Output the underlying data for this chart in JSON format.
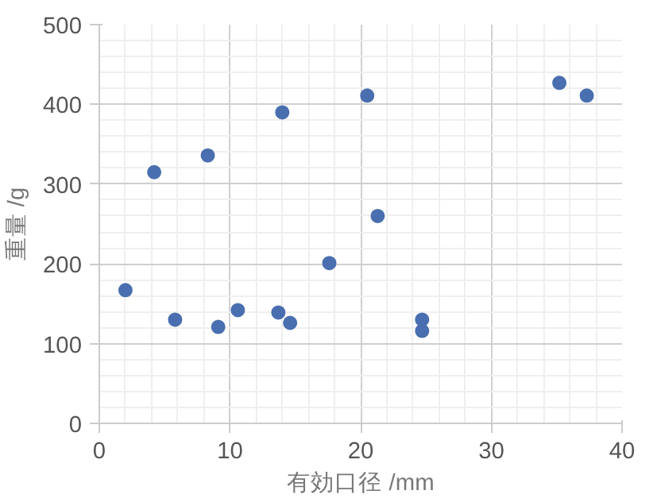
{
  "chart_data": {
    "type": "scatter",
    "xlabel": "有効口径 /mm",
    "ylabel": "重量 /g",
    "x": [
      2.0,
      4.2,
      8.3,
      14.0,
      20.5,
      35.2,
      37.3,
      5.8,
      9.1,
      10.6,
      13.7,
      14.6,
      17.6,
      21.3,
      24.7,
      24.7
    ],
    "series": [
      {
        "color": "#4a6fb0",
        "values": [
          167,
          315,
          336,
          390,
          411,
          427,
          411,
          130,
          121,
          142,
          139,
          126,
          201,
          260,
          130,
          116
        ]
      }
    ],
    "xlim": [
      0,
      40
    ],
    "ylim": [
      0,
      500
    ],
    "xticks": [
      0,
      10,
      20,
      30,
      40
    ],
    "yticks": [
      0,
      100,
      200,
      300,
      400,
      500
    ],
    "grid": true,
    "marker": "circle"
  }
}
